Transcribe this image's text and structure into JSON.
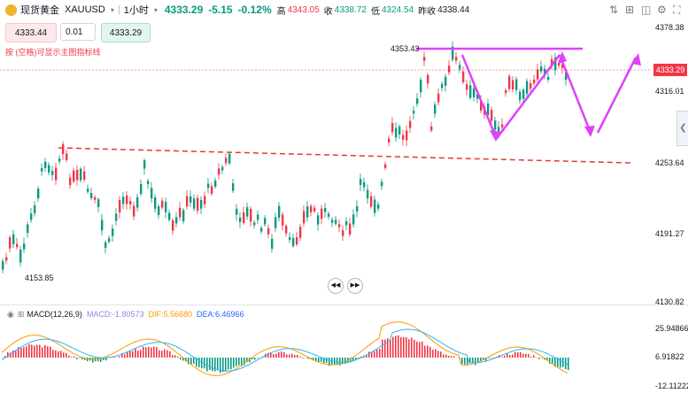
{
  "header": {
    "symbol_name": "现货黄金",
    "symbol_code": "XAUUSD",
    "interval": "1小时",
    "price": "4333.29",
    "change": "-5.15",
    "change_pct": "-0.12%",
    "high_label": "高",
    "high_value": "4343.05",
    "low_label": "低",
    "low_value": "4324.54",
    "close_label": "收",
    "close_value": "4338.72",
    "prev_label": "昨收",
    "prev_value": "4338.44"
  },
  "order_panel": {
    "sell_price": "4333.44",
    "quantity": "0.01",
    "buy_price": "4333.29",
    "hint": "按 (空格)可显示主图指标线"
  },
  "price_scale": {
    "labels": [
      "4378.38",
      "4316.01",
      "4253.64",
      "4191.27",
      "4130.82"
    ],
    "current": "4333.29"
  },
  "annotations": {
    "high_mark": "4353.43",
    "low_mark": "4153.85"
  },
  "macd": {
    "title": "MACD(12,26,9)",
    "macd_label": "MACD:-1.80573",
    "dif_label": "DIF:5.56680",
    "dea_label": "DEA:6.46966",
    "scale": [
      "25.94866",
      "6.91822",
      "-12.11222"
    ]
  },
  "colors": {
    "up": "#f23645",
    "down": "#089981",
    "trend_arrows": "#e040fb",
    "support_line": "#e53935",
    "dif_line": "#ff9800",
    "dea_line": "#29b6f6"
  },
  "icons": {
    "toolbar": [
      "chart-type-icon",
      "indicator-icon",
      "screenshot-icon",
      "settings-icon",
      "fullscreen-icon"
    ]
  }
}
